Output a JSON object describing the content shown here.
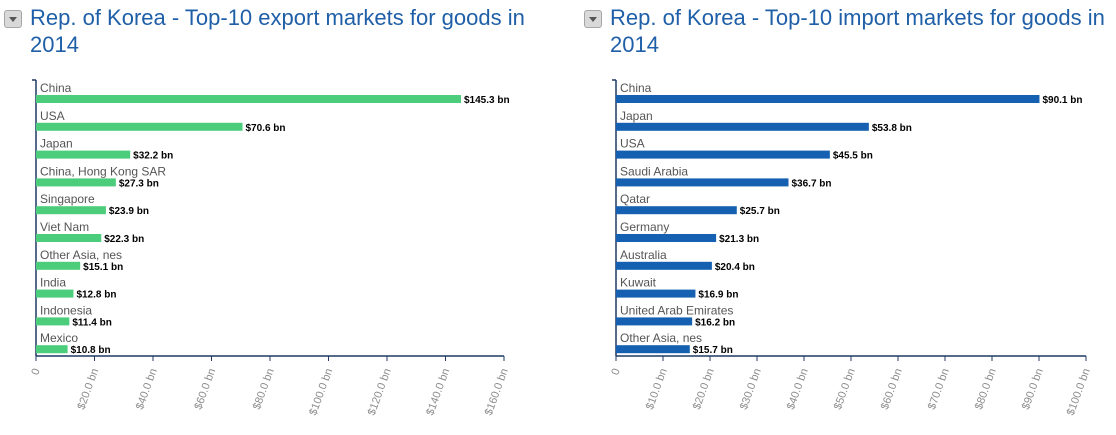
{
  "chart_data": [
    {
      "type": "bar",
      "orientation": "horizontal",
      "title": "Rep. of Korea - Top-10 export markets for goods in 2014",
      "categories": [
        "China",
        "USA",
        "Japan",
        "China, Hong Kong SAR",
        "Singapore",
        "Viet Nam",
        "Other Asia, nes",
        "India",
        "Indonesia",
        "Mexico"
      ],
      "values": [
        145.3,
        70.6,
        32.2,
        27.3,
        23.9,
        22.3,
        15.1,
        12.8,
        11.4,
        10.8
      ],
      "value_labels": [
        "$145.3 bn",
        "$70.6 bn",
        "$32.2 bn",
        "$27.3 bn",
        "$23.9 bn",
        "$22.3 bn",
        "$15.1 bn",
        "$12.8 bn",
        "$11.4 bn",
        "$10.8 bn"
      ],
      "xlim": [
        0,
        160
      ],
      "x_ticks": [
        0,
        20,
        40,
        60,
        80,
        100,
        120,
        140,
        160
      ],
      "x_tick_labels": [
        "0",
        "$20.0 bn",
        "$40.0 bn",
        "$60.0 bn",
        "$80.0 bn",
        "$100.0 bn",
        "$120.0 bn",
        "$140.0 bn",
        "$160.0 bn"
      ],
      "color": "#4ccd7b",
      "grid": false
    },
    {
      "type": "bar",
      "orientation": "horizontal",
      "title": "Rep. of Korea - Top-10 import markets for goods in 2014",
      "categories": [
        "China",
        "Japan",
        "USA",
        "Saudi Arabia",
        "Qatar",
        "Germany",
        "Australia",
        "Kuwait",
        "United Arab Emirates",
        "Other Asia, nes"
      ],
      "values": [
        90.1,
        53.8,
        45.5,
        36.7,
        25.7,
        21.3,
        20.4,
        16.9,
        16.2,
        15.7
      ],
      "value_labels": [
        "$90.1 bn",
        "$53.8 bn",
        "$45.5 bn",
        "$36.7 bn",
        "$25.7 bn",
        "$21.3 bn",
        "$20.4 bn",
        "$16.9 bn",
        "$16.2 bn",
        "$15.7 bn"
      ],
      "xlim": [
        0,
        100
      ],
      "x_ticks": [
        0,
        10,
        20,
        30,
        40,
        50,
        60,
        70,
        80,
        90,
        100
      ],
      "x_tick_labels": [
        "0",
        "$10.0 bn",
        "$20.0 bn",
        "$30.0 bn",
        "$40.0 bn",
        "$50.0 bn",
        "$60.0 bn",
        "$70.0 bn",
        "$80.0 bn",
        "$90.0 bn",
        "$100.0 bn"
      ],
      "color": "#1560b0",
      "grid": false
    }
  ]
}
